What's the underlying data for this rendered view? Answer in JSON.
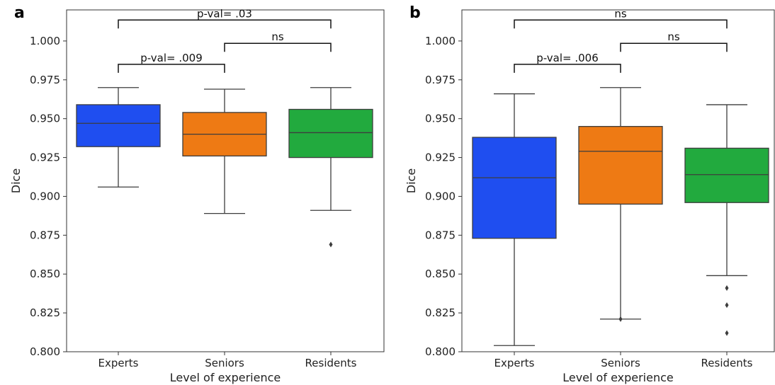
{
  "chart_data": [
    {
      "panel": "a",
      "type": "box",
      "xlabel": "Level of experience",
      "ylabel": "Dice",
      "ylim": [
        0.8,
        1.02
      ],
      "yticks": [
        "0.800",
        "0.825",
        "0.850",
        "0.875",
        "0.900",
        "0.925",
        "0.950",
        "0.975",
        "1.000"
      ],
      "grid": false,
      "categories": [
        "Experts",
        "Seniors",
        "Residents"
      ],
      "colors": [
        "#1f4ef0",
        "#ee7a14",
        "#22aa3e"
      ],
      "boxes": [
        {
          "category": "Experts",
          "whislo": 0.906,
          "q1": 0.932,
          "med": 0.947,
          "q3": 0.959,
          "whishi": 0.97,
          "fliers": []
        },
        {
          "category": "Seniors",
          "whislo": 0.889,
          "q1": 0.926,
          "med": 0.94,
          "q3": 0.954,
          "whishi": 0.969,
          "fliers": []
        },
        {
          "category": "Residents",
          "whislo": 0.891,
          "q1": 0.925,
          "med": 0.941,
          "q3": 0.956,
          "whishi": 0.97,
          "fliers": [
            0.869
          ]
        }
      ],
      "annotations": [
        {
          "from": "Experts",
          "to": "Seniors",
          "text": "p-val= .009",
          "level": 0.985
        },
        {
          "from": "Seniors",
          "to": "Residents",
          "text": "ns",
          "level": 0.9985
        },
        {
          "from": "Experts",
          "to": "Residents",
          "text": "p-val= .03",
          "level": 1.0135
        }
      ]
    },
    {
      "panel": "b",
      "type": "box",
      "xlabel": "Level of experience",
      "ylabel": "Dice",
      "ylim": [
        0.8,
        1.02
      ],
      "yticks": [
        "0.800",
        "0.825",
        "0.850",
        "0.875",
        "0.900",
        "0.925",
        "0.950",
        "0.975",
        "1.000"
      ],
      "grid": false,
      "categories": [
        "Experts",
        "Seniors",
        "Residents"
      ],
      "colors": [
        "#1f4ef0",
        "#ee7a14",
        "#22aa3e"
      ],
      "boxes": [
        {
          "category": "Experts",
          "whislo": 0.804,
          "q1": 0.873,
          "med": 0.912,
          "q3": 0.938,
          "whishi": 0.966,
          "fliers": []
        },
        {
          "category": "Seniors",
          "whislo": 0.821,
          "q1": 0.895,
          "med": 0.929,
          "q3": 0.945,
          "whishi": 0.97,
          "fliers": [
            0.821
          ]
        },
        {
          "category": "Residents",
          "whislo": 0.849,
          "q1": 0.896,
          "med": 0.914,
          "q3": 0.931,
          "whishi": 0.959,
          "fliers": [
            0.841,
            0.83,
            0.812
          ]
        }
      ],
      "annotations": [
        {
          "from": "Experts",
          "to": "Seniors",
          "text": "p-val= .006",
          "level": 0.985
        },
        {
          "from": "Seniors",
          "to": "Residents",
          "text": "ns",
          "level": 0.9985
        },
        {
          "from": "Experts",
          "to": "Residents",
          "text": "ns",
          "level": 1.0135
        }
      ]
    }
  ]
}
